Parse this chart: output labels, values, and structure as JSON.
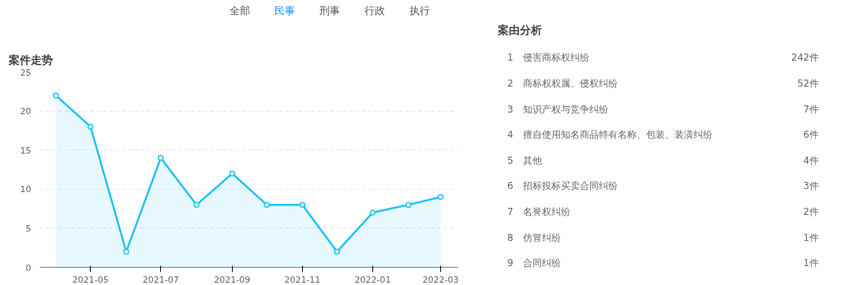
{
  "chart_data": [
    {
      "type": "area",
      "title": "案件走势",
      "annotations": [
        "全部",
        "民事",
        "刑事",
        "行政",
        "执行"
      ],
      "x": [
        "2021-04",
        "2021-05",
        "2021-06",
        "2021-07",
        "2021-08",
        "2021-09",
        "2021-10",
        "2021-11",
        "2021-12",
        "2022-01",
        "2022-02",
        "2022-03"
      ],
      "series": [
        {
          "color": "#1fc2f5",
          "values": [
            22,
            18,
            2,
            14,
            8,
            12,
            8,
            8,
            2,
            7,
            8,
            9
          ]
        }
      ],
      "xlim": [
        "2021-03-18",
        "2022-03-16"
      ],
      "xticks": [
        {
          "value": "2021-05",
          "label": "2021-05"
        },
        {
          "value": "2021-07",
          "label": "2021-07"
        },
        {
          "value": "2021-09",
          "label": "2021-09"
        },
        {
          "value": "2021-11",
          "label": "2021-11"
        },
        {
          "value": "2022-01",
          "label": "2022-01"
        },
        {
          "value": "2022-03",
          "label": "2022-03"
        }
      ],
      "ylim": [
        0,
        25
      ],
      "yticks": [
        0,
        5,
        10,
        15,
        20,
        25
      ],
      "grid": "y",
      "marker": "circle",
      "line_style": "solid"
    },
    {
      "type": "other",
      "title": "案由分析",
      "categories": [
        "1　侵害商标权纠纷",
        "2　商标权权属、侵权纠纷",
        "3　知识产权与竞争纠纷",
        "4　擅自使用知名商品特有名称、包装、装潢纠纷",
        "5　其他",
        "6　招标投标买卖合同纠纷",
        "7　名誉权纠纷",
        "8　仿冒纠纷",
        "9　合同纠纷"
      ],
      "value_labels": [
        "242件",
        "52件",
        "7件",
        "6件",
        "4件",
        "3件",
        "2件",
        "1件",
        "1件"
      ]
    }
  ]
}
